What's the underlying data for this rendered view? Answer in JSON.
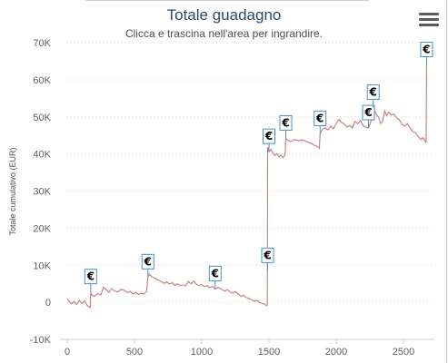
{
  "header": {
    "title": "Totale guadagno",
    "subtitle": "Clicca e trascina nell'area per ingrandire."
  },
  "menu": {
    "icon": "hamburger-menu-icon"
  },
  "chart_data": {
    "type": "line",
    "title": "Totale guadagno",
    "subtitle": "Clicca e trascina nell'area per ingrandire.",
    "xlabel": "",
    "ylabel": "Totale cumulativo (EUR)",
    "xlim": [
      -40,
      2700
    ],
    "ylim": [
      -10000,
      70000
    ],
    "xticks": [
      0,
      500,
      1000,
      1500,
      2000,
      2500
    ],
    "xtick_labels": [
      "0",
      "500",
      "1000",
      "1500",
      "2000",
      "2500"
    ],
    "yticks": [
      -10000,
      0,
      10000,
      20000,
      30000,
      40000,
      50000,
      60000,
      70000
    ],
    "ytick_labels": [
      "-10K",
      "0",
      "10K",
      "20K",
      "30K",
      "40K",
      "50K",
      "60K",
      "70K"
    ],
    "grid": "horizontal-dotted",
    "line_color": "#c47a7a",
    "flag_color": "#4a90c4",
    "series": [
      {
        "points": [
          [
            0,
            800
          ],
          [
            15,
            300
          ],
          [
            30,
            -400
          ],
          [
            50,
            200
          ],
          [
            70,
            -600
          ],
          [
            90,
            500
          ],
          [
            110,
            -300
          ],
          [
            130,
            400
          ],
          [
            150,
            -900
          ],
          [
            170,
            -1400
          ],
          [
            175,
            2800
          ],
          [
            180,
            2100
          ],
          [
            200,
            1600
          ],
          [
            225,
            2300
          ],
          [
            250,
            2000
          ],
          [
            270,
            4100
          ],
          [
            290,
            3400
          ],
          [
            310,
            2700
          ],
          [
            330,
            3700
          ],
          [
            350,
            3100
          ],
          [
            375,
            2800
          ],
          [
            400,
            3500
          ],
          [
            425,
            3200
          ],
          [
            450,
            2600
          ],
          [
            470,
            3000
          ],
          [
            490,
            2200
          ],
          [
            510,
            2700
          ],
          [
            530,
            2100
          ],
          [
            550,
            2500
          ],
          [
            570,
            2200
          ],
          [
            590,
            3000
          ],
          [
            600,
            6800
          ],
          [
            610,
            7600
          ],
          [
            630,
            6900
          ],
          [
            650,
            6500
          ],
          [
            680,
            6000
          ],
          [
            700,
            5600
          ],
          [
            720,
            5100
          ],
          [
            740,
            5500
          ],
          [
            760,
            4900
          ],
          [
            780,
            5300
          ],
          [
            800,
            4600
          ],
          [
            820,
            5000
          ],
          [
            840,
            4500
          ],
          [
            860,
            4700
          ],
          [
            880,
            4400
          ],
          [
            900,
            5600
          ],
          [
            920,
            5000
          ],
          [
            940,
            5700
          ],
          [
            960,
            4900
          ],
          [
            980,
            4500
          ],
          [
            1000,
            4800
          ],
          [
            1020,
            4200
          ],
          [
            1040,
            4500
          ],
          [
            1060,
            3900
          ],
          [
            1080,
            4300
          ],
          [
            1100,
            3600
          ],
          [
            1120,
            4000
          ],
          [
            1150,
            3500
          ],
          [
            1170,
            3000
          ],
          [
            1190,
            3400
          ],
          [
            1210,
            2800
          ],
          [
            1230,
            2500
          ],
          [
            1250,
            2900
          ],
          [
            1270,
            2300
          ],
          [
            1290,
            1600
          ],
          [
            1310,
            1900
          ],
          [
            1330,
            1300
          ],
          [
            1350,
            1100
          ],
          [
            1370,
            700
          ],
          [
            1390,
            300
          ],
          [
            1410,
            500
          ],
          [
            1430,
            0
          ],
          [
            1450,
            -300
          ],
          [
            1470,
            -500
          ],
          [
            1480,
            -900
          ],
          [
            1488,
            -700
          ],
          [
            1490,
            41800
          ],
          [
            1500,
            40600
          ],
          [
            1515,
            41200
          ],
          [
            1530,
            40200
          ],
          [
            1545,
            39600
          ],
          [
            1560,
            40100
          ],
          [
            1575,
            39200
          ],
          [
            1590,
            39700
          ],
          [
            1605,
            39000
          ],
          [
            1620,
            39900
          ],
          [
            1625,
            44200
          ],
          [
            1640,
            43700
          ],
          [
            1660,
            43300
          ],
          [
            1690,
            43900
          ],
          [
            1720,
            43600
          ],
          [
            1750,
            43800
          ],
          [
            1780,
            43300
          ],
          [
            1810,
            42900
          ],
          [
            1840,
            42300
          ],
          [
            1860,
            42000
          ],
          [
            1875,
            41500
          ],
          [
            1880,
            45400
          ],
          [
            1900,
            46800
          ],
          [
            1920,
            47000
          ],
          [
            1940,
            46500
          ],
          [
            1960,
            47500
          ],
          [
            1980,
            46800
          ],
          [
            2000,
            48200
          ],
          [
            2020,
            49300
          ],
          [
            2040,
            48500
          ],
          [
            2060,
            48100
          ],
          [
            2080,
            47200
          ],
          [
            2100,
            47700
          ],
          [
            2120,
            47000
          ],
          [
            2140,
            48800
          ],
          [
            2160,
            48100
          ],
          [
            2180,
            49000
          ],
          [
            2200,
            47700
          ],
          [
            2220,
            47200
          ],
          [
            2240,
            47000
          ],
          [
            2260,
            49000
          ],
          [
            2275,
            52500
          ],
          [
            2285,
            51700
          ],
          [
            2300,
            50500
          ],
          [
            2315,
            50000
          ],
          [
            2330,
            48200
          ],
          [
            2345,
            48800
          ],
          [
            2360,
            51600
          ],
          [
            2375,
            50300
          ],
          [
            2390,
            51200
          ],
          [
            2410,
            50500
          ],
          [
            2430,
            50800
          ],
          [
            2450,
            49700
          ],
          [
            2470,
            49200
          ],
          [
            2490,
            48000
          ],
          [
            2510,
            47500
          ],
          [
            2530,
            48200
          ],
          [
            2550,
            46900
          ],
          [
            2570,
            46000
          ],
          [
            2590,
            45700
          ],
          [
            2610,
            44600
          ],
          [
            2630,
            43900
          ],
          [
            2645,
            44400
          ],
          [
            2660,
            43600
          ],
          [
            2668,
            43000
          ],
          [
            2672,
            64000
          ]
        ]
      }
    ],
    "flags": [
      {
        "x": 175,
        "y": 2800,
        "title": "€"
      },
      {
        "x": 600,
        "y": 6800,
        "title": "€"
      },
      {
        "x": 1100,
        "y": 3600,
        "title": "€"
      },
      {
        "x": 1490,
        "y": 8500,
        "title": "€"
      },
      {
        "x": 1500,
        "y": 40600,
        "title": "€"
      },
      {
        "x": 1625,
        "y": 44200,
        "title": "€"
      },
      {
        "x": 1880,
        "y": 45400,
        "title": "€"
      },
      {
        "x": 2240,
        "y": 47000,
        "title": "€"
      },
      {
        "x": 2275,
        "y": 52500,
        "title": "€"
      },
      {
        "x": 2672,
        "y": 64000,
        "title": "€"
      }
    ]
  }
}
